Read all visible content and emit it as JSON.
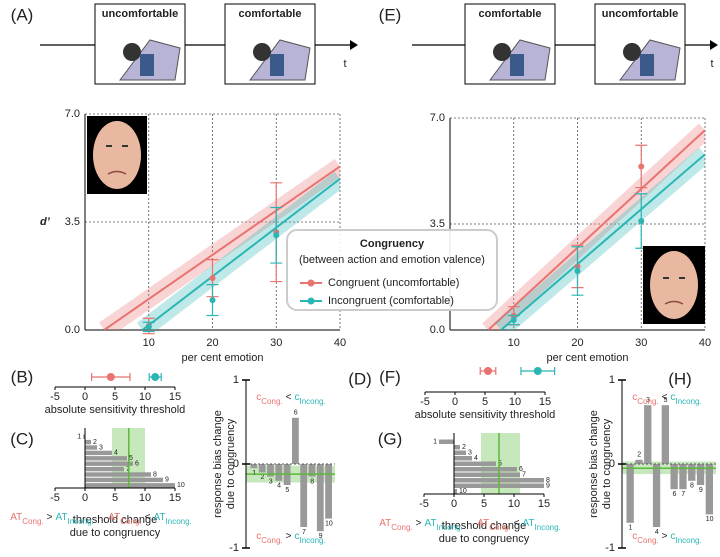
{
  "panel_labels": [
    "(A)",
    "(B)",
    "(C)",
    "(D)",
    "(E)",
    "(F)",
    "(G)",
    "(H)"
  ],
  "timelines": [
    {
      "frames": [
        "uncomfortable",
        "comfortable"
      ],
      "axis_label": "t"
    },
    {
      "frames": [
        "comfortable",
        "uncomfortable"
      ],
      "axis_label": "t"
    }
  ],
  "chart_data": [
    {
      "type": "scatter",
      "x": [
        10,
        20,
        30
      ],
      "xlim": [
        0,
        40
      ],
      "ylim": [
        0,
        7
      ],
      "xticks": [
        10,
        20,
        30,
        40
      ],
      "yticks": [
        {
          "value": 0,
          "label": "0.0"
        },
        {
          "value": 3.5,
          "label": "3.5"
        },
        {
          "value": 7,
          "label": "7.0"
        }
      ],
      "grid": true,
      "ylabel": "d’",
      "xlabel": "per cent emotion",
      "legend_title": "Congruency",
      "legend_subtitle": "(between action and emotion valence)",
      "series": [
        {
          "name": "Congruent (uncomfortable)",
          "color": "#e8736f",
          "values": [
            0.13,
            1.68,
            3.17
          ],
          "errors": [
            0.25,
            0.6,
            1.6
          ],
          "fit_x": [
            3,
            40
          ],
          "fit_y": [
            0,
            5.3
          ]
        },
        {
          "name": "Incongruent (comfortable)",
          "color": "#2bb5b5",
          "values": [
            0.1,
            0.97,
            3.07
          ],
          "errors": [
            0.15,
            0.5,
            0.9
          ],
          "fit_x": [
            9,
            40
          ],
          "fit_y": [
            0,
            4.9
          ]
        }
      ]
    },
    {
      "type": "scatter",
      "x": [
        10,
        20,
        30
      ],
      "xlim": [
        0,
        40
      ],
      "ylim": [
        0,
        7
      ],
      "xticks": [
        10,
        20,
        30,
        40
      ],
      "yticks": [
        {
          "value": 0,
          "label": "0.0"
        },
        {
          "value": 3.5,
          "label": "3.5"
        },
        {
          "value": 7,
          "label": "7.0"
        }
      ],
      "grid": true,
      "xlabel": "per cent emotion",
      "series": [
        {
          "color": "#e8736f",
          "values": [
            0.47,
            2.1,
            5.4
          ],
          "errors": [
            0.3,
            0.7,
            0.7
          ],
          "fit_x": [
            6,
            40
          ],
          "fit_y": [
            0,
            6.6
          ]
        },
        {
          "color": "#2bb5b5",
          "values": [
            0.33,
            1.95,
            3.6
          ],
          "errors": [
            0.15,
            0.8,
            0.9
          ],
          "fit_x": [
            8,
            40
          ],
          "fit_y": [
            0,
            5.8
          ]
        }
      ]
    },
    {
      "type": "errorpoint",
      "xlim": [
        -5,
        15
      ],
      "xticks": [
        -5,
        0,
        5,
        10,
        15
      ],
      "xlabel": "absolute sensitivity threshold",
      "series": [
        {
          "color": "#e8736f",
          "values": [
            4.3
          ],
          "errors": [
            3.2
          ]
        },
        {
          "color": "#2bb5b5",
          "values": [
            11.7
          ],
          "errors": [
            1.0
          ]
        }
      ]
    },
    {
      "type": "errorpoint",
      "xlim": [
        -5,
        15
      ],
      "xticks": [
        -5,
        0,
        5,
        10,
        15
      ],
      "xlabel": "absolute sensitivity threshold",
      "series": [
        {
          "color": "#e8736f",
          "values": [
            5.5
          ],
          "errors": [
            1.3
          ]
        },
        {
          "color": "#2bb5b5",
          "values": [
            13.8
          ],
          "errors": [
            2.8
          ]
        }
      ]
    },
    {
      "type": "hbar",
      "categories": [
        "1",
        "2",
        "3",
        "4",
        "5",
        "6",
        "7",
        "8",
        "9",
        "10"
      ],
      "values": [
        -0.3,
        1,
        2,
        4.5,
        7,
        8,
        6.5,
        11,
        13,
        15
      ],
      "color": "#999999",
      "xlim": [
        -5,
        15
      ],
      "xticks": [
        -5,
        0,
        5,
        10,
        15
      ],
      "mean": 7.3,
      "ci": [
        4.5,
        10
      ],
      "band_color": "#8fd07a",
      "xlabel": [
        "threshold change",
        "due to congruency"
      ],
      "colors": [
        "#e8736f",
        "#2bb5b5"
      ],
      "notes": [
        [
          "AT",
          "Cong.",
          ">",
          "AT",
          "Incong."
        ],
        [
          "AT",
          "Cong.",
          "<",
          "AT",
          "Incong."
        ]
      ]
    },
    {
      "type": "hbar",
      "categories": [
        "1",
        "2",
        "3",
        "4",
        "5",
        "6",
        "7",
        "8",
        "9",
        "10"
      ],
      "values": [
        -2.5,
        1,
        2,
        3,
        7,
        10.5,
        11,
        15,
        15,
        0.5
      ],
      "color": "#999999",
      "xlim": [
        -5,
        15
      ],
      "xticks": [
        -5,
        0,
        5,
        10,
        15
      ],
      "mean": 7.5,
      "ci": [
        4.5,
        11
      ],
      "band_color": "#8fd07a",
      "xlabel": [
        "threshold change",
        "due to congruency"
      ],
      "colors": [
        "#e8736f",
        "#2bb5b5"
      ],
      "notes": [
        [
          "AT",
          "Cong.",
          ">",
          "AT",
          "Incong."
        ],
        [
          "AT",
          "Cong.",
          "<",
          "AT",
          "Incong."
        ]
      ]
    },
    {
      "type": "vbar",
      "categories": [
        "1",
        "2",
        "3",
        "4",
        "5",
        "6",
        "7",
        "8",
        "9",
        "10"
      ],
      "values": [
        -0.05,
        -0.1,
        -0.15,
        -0.2,
        -0.25,
        0.55,
        -0.75,
        -0.15,
        -0.8,
        -0.65
      ],
      "color": "#999999",
      "ylim": [
        -1,
        1
      ],
      "yticks": [
        -1,
        0,
        1
      ],
      "mean": -0.12,
      "ci": [
        -0.22,
        -0.02
      ],
      "band_color": "#8fd07a",
      "ylabel": [
        "response bias change",
        "due to congruency"
      ],
      "colors": [
        "#e8736f",
        "#2bb5b5"
      ],
      "notes": [
        [
          "c",
          "Cong.",
          "<",
          "c",
          "Incong."
        ],
        [
          "c",
          "Cong.",
          ">",
          "c",
          "Incong."
        ]
      ]
    },
    {
      "type": "vbar",
      "categories": [
        "1",
        "2",
        "3",
        "4",
        "5",
        "6",
        "7",
        "8",
        "9",
        "10"
      ],
      "values": [
        -0.7,
        0.05,
        0.7,
        -0.75,
        0.7,
        -0.3,
        -0.3,
        -0.2,
        -0.25,
        -0.6
      ],
      "color": "#999999",
      "ylim": [
        -1,
        1
      ],
      "yticks": [
        -1,
        0,
        1
      ],
      "mean": -0.05,
      "ci": [
        -0.12,
        0.03
      ],
      "band_color": "#8fd07a",
      "ylabel": [
        "response bias change",
        "due to congruency"
      ],
      "colors": [
        "#e8736f",
        "#2bb5b5"
      ],
      "notes": [
        [
          "c",
          "Cong.",
          "<",
          "c",
          "Incong."
        ],
        [
          "c",
          "Cong.",
          ">",
          "c",
          "Incong."
        ]
      ]
    }
  ]
}
